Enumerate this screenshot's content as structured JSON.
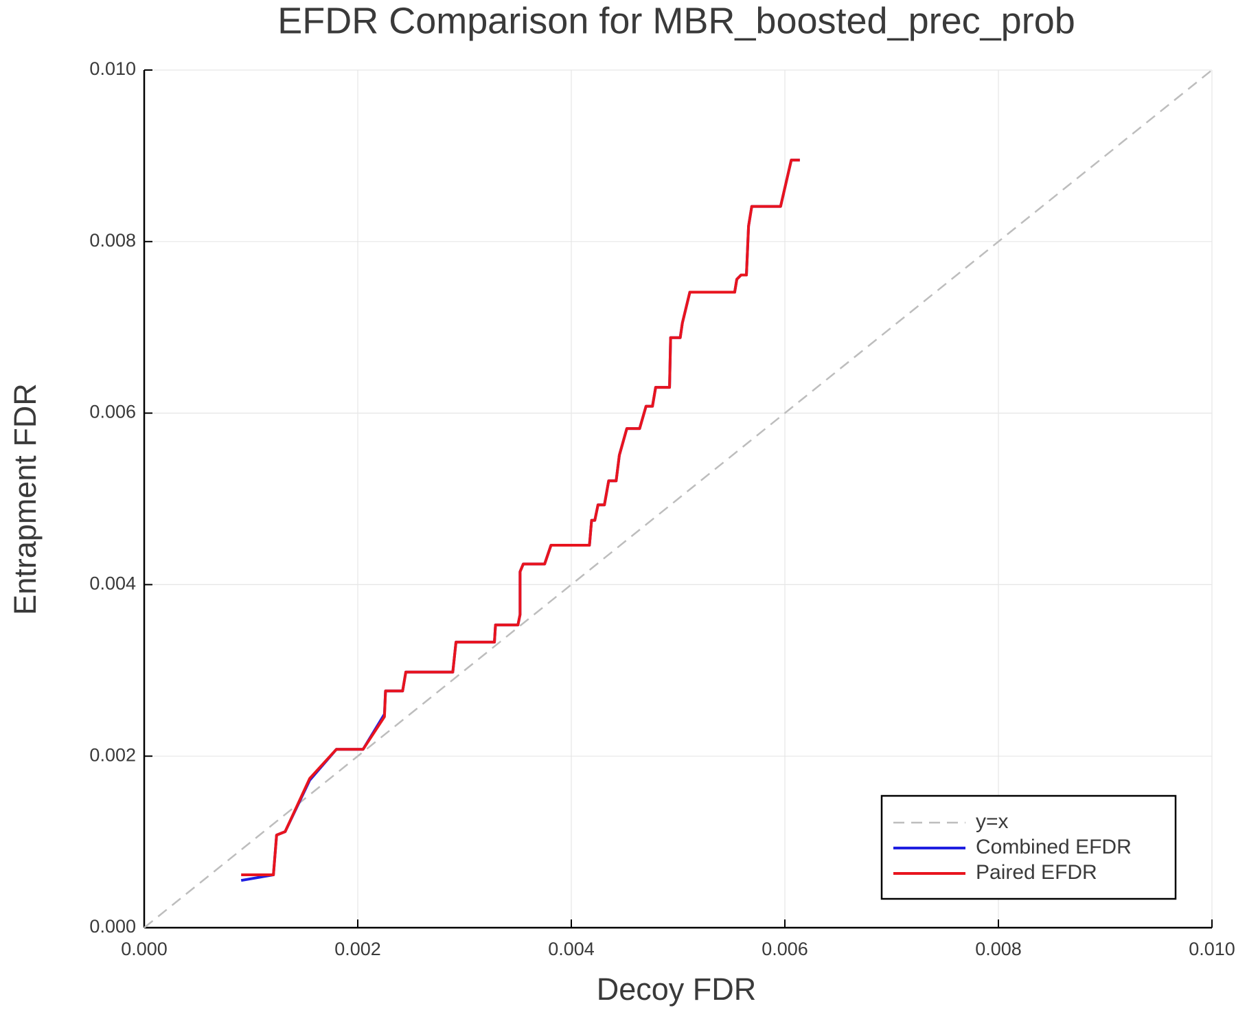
{
  "chart_data": {
    "type": "line",
    "title": "EFDR Comparison for MBR_boosted_prec_prob",
    "x_label": "Decoy FDR",
    "y_label": "Entrapment FDR",
    "xlim": [
      0,
      0.01
    ],
    "ylim": [
      0,
      0.01
    ],
    "xticks": [
      {
        "value": 0,
        "label": "0.000"
      },
      {
        "value": 0.002,
        "label": "0.002"
      },
      {
        "value": 0.004,
        "label": "0.004"
      },
      {
        "value": 0.006,
        "label": "0.006"
      },
      {
        "value": 0.008,
        "label": "0.008"
      },
      {
        "value": 0.01,
        "label": "0.010"
      }
    ],
    "yticks": [
      {
        "value": 0,
        "label": "0.000"
      },
      {
        "value": 0.002,
        "label": "0.002"
      },
      {
        "value": 0.004,
        "label": "0.004"
      },
      {
        "value": 0.006,
        "label": "0.006"
      },
      {
        "value": 0.008,
        "label": "0.008"
      },
      {
        "value": 0.01,
        "label": "0.010"
      }
    ],
    "grid": true,
    "legend": "lower right",
    "series": [
      {
        "name": "y=x",
        "color": "#bdbdbd",
        "line_style": "dashed",
        "x": [
          0,
          0.01
        ],
        "values": [
          0,
          0.01
        ]
      },
      {
        "name": "Combined EFDR",
        "color": "#1f1fe0",
        "line_style": "solid",
        "x": [
          0.000908,
          0.00121,
          0.00124,
          0.00128,
          0.00132,
          0.00155,
          0.0018,
          0.00205,
          0.00225,
          0.00226,
          0.00242,
          0.00245,
          0.00289,
          0.00292,
          0.00328,
          0.00329,
          0.0035,
          0.00352,
          0.00352,
          0.00355,
          0.00375,
          0.00381,
          0.00417,
          0.00419,
          0.00422,
          0.00425,
          0.00431,
          0.00435,
          0.00442,
          0.00445,
          0.00452,
          0.00464,
          0.0047,
          0.00476,
          0.00479,
          0.00492,
          0.00493,
          0.00502,
          0.00504,
          0.00511,
          0.00553,
          0.00555,
          0.00559,
          0.00564,
          0.00566,
          0.00569,
          0.00596,
          0.00606,
          0.00614
        ],
        "values": [
          0.000551,
          0.000616,
          0.00108,
          0.0011,
          0.00112,
          0.00172,
          0.00208,
          0.00208,
          0.00249,
          0.00276,
          0.00276,
          0.00298,
          0.00298,
          0.00333,
          0.00333,
          0.00353,
          0.00353,
          0.00365,
          0.00415,
          0.00424,
          0.00424,
          0.00446,
          0.00446,
          0.00475,
          0.00475,
          0.00493,
          0.00493,
          0.00521,
          0.00521,
          0.00551,
          0.00582,
          0.00582,
          0.00608,
          0.00608,
          0.0063,
          0.0063,
          0.00688,
          0.00688,
          0.00705,
          0.00741,
          0.00741,
          0.00756,
          0.00761,
          0.00761,
          0.00818,
          0.00841,
          0.00841,
          0.00895,
          0.00895
        ]
      },
      {
        "name": "Paired EFDR",
        "color": "#e8141e",
        "line_style": "solid",
        "x": [
          0.000908,
          0.00121,
          0.00124,
          0.00128,
          0.00132,
          0.00155,
          0.0018,
          0.00205,
          0.00225,
          0.00226,
          0.00242,
          0.00245,
          0.00289,
          0.00292,
          0.00328,
          0.00329,
          0.0035,
          0.00352,
          0.00352,
          0.00355,
          0.00375,
          0.00381,
          0.00417,
          0.00419,
          0.00422,
          0.00425,
          0.00431,
          0.00435,
          0.00442,
          0.00445,
          0.00452,
          0.00464,
          0.0047,
          0.00476,
          0.00479,
          0.00492,
          0.00493,
          0.00502,
          0.00504,
          0.00511,
          0.00553,
          0.00555,
          0.00559,
          0.00564,
          0.00566,
          0.00569,
          0.00596,
          0.00606,
          0.00614
        ],
        "values": [
          0.000616,
          0.000616,
          0.00108,
          0.0011,
          0.00112,
          0.00174,
          0.00208,
          0.00208,
          0.00246,
          0.00276,
          0.00276,
          0.00298,
          0.00298,
          0.00333,
          0.00333,
          0.00353,
          0.00353,
          0.00365,
          0.00415,
          0.00424,
          0.00424,
          0.00446,
          0.00446,
          0.00475,
          0.00475,
          0.00493,
          0.00493,
          0.00521,
          0.00521,
          0.00551,
          0.00582,
          0.00582,
          0.00608,
          0.00608,
          0.0063,
          0.0063,
          0.00688,
          0.00688,
          0.00705,
          0.00741,
          0.00741,
          0.00756,
          0.00761,
          0.00761,
          0.00818,
          0.00841,
          0.00841,
          0.00895,
          0.00895
        ]
      }
    ]
  }
}
